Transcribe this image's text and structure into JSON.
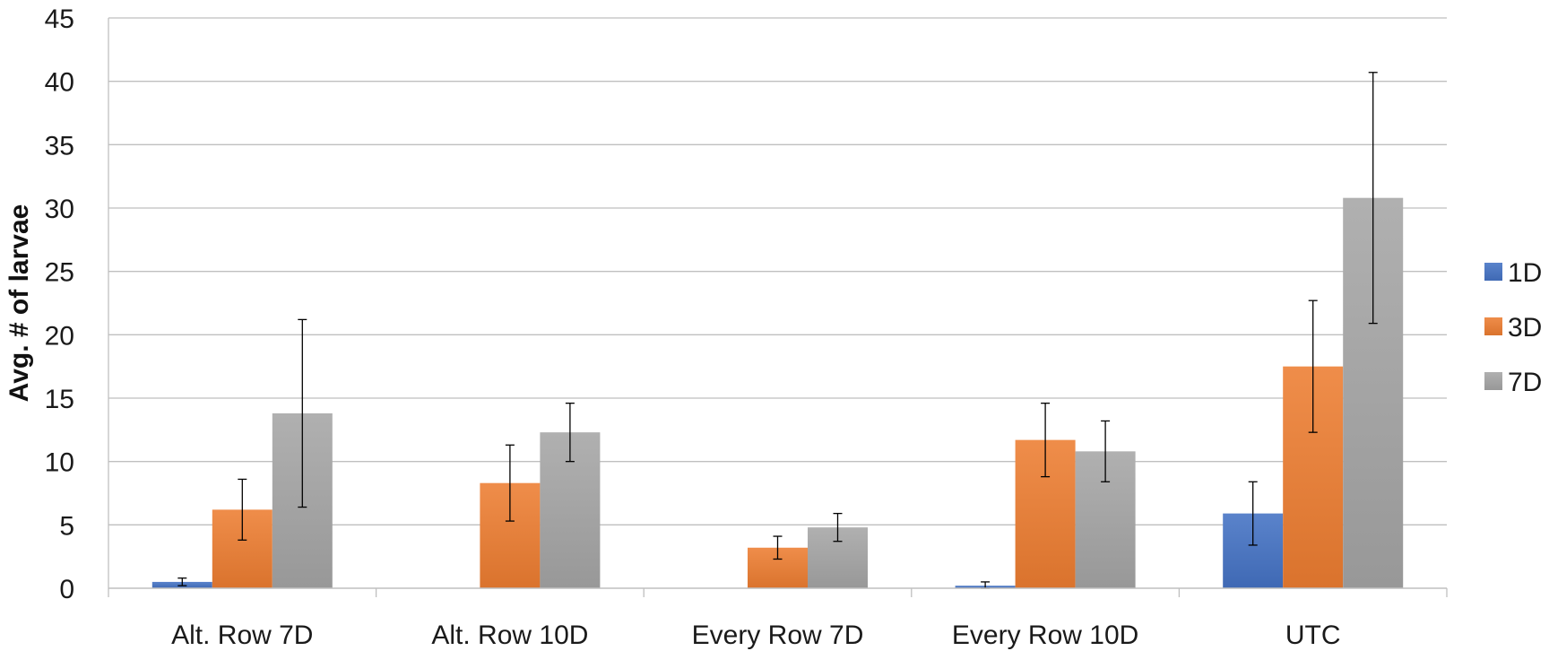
{
  "chart_data": {
    "type": "bar",
    "title": "",
    "xlabel": "",
    "ylabel": "Avg. # of larvae",
    "ylim": [
      0,
      45
    ],
    "yticks": [
      0,
      5,
      10,
      15,
      20,
      25,
      30,
      35,
      40,
      45
    ],
    "grid": true,
    "legend_position": "right",
    "categories": [
      "Alt. Row 7D",
      "Alt. Row 10D",
      "Every Row 7D",
      "Every Row 10D",
      "UTC"
    ],
    "series": [
      {
        "name": "1D",
        "color": "#4472C4",
        "values": [
          0.5,
          0,
          0,
          0.2,
          5.9
        ],
        "errors": [
          0.3,
          0,
          0,
          0.3,
          2.5
        ]
      },
      {
        "name": "3D",
        "color": "#ED7D31",
        "values": [
          6.2,
          8.3,
          3.2,
          11.7,
          17.5
        ],
        "errors": [
          2.4,
          3.0,
          0.9,
          2.9,
          5.2
        ]
      },
      {
        "name": "7D",
        "color": "#A5A5A5",
        "values": [
          13.8,
          12.3,
          4.8,
          10.8,
          30.8
        ],
        "errors": [
          7.4,
          2.3,
          1.1,
          2.4,
          9.9
        ]
      }
    ]
  }
}
